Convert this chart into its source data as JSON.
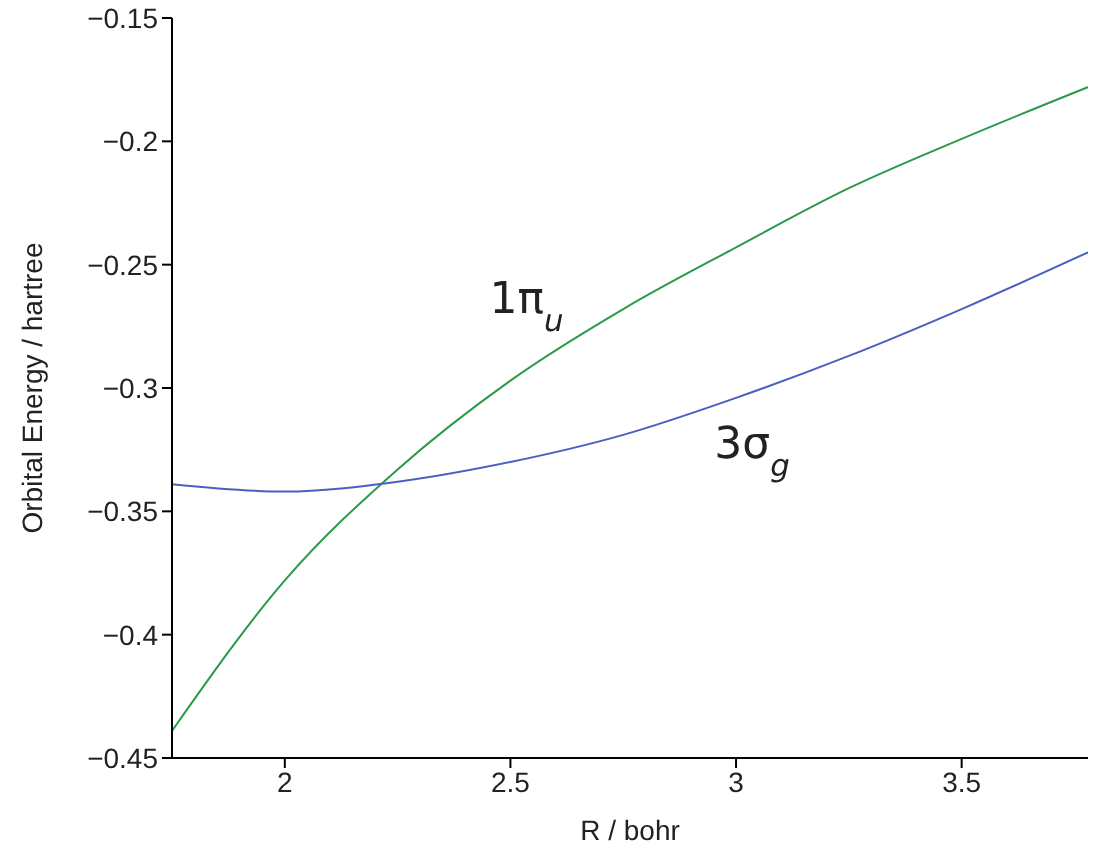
{
  "chart_data": {
    "type": "line",
    "xlabel": "R / bohr",
    "ylabel": "Orbital Energy / hartree",
    "x": [
      1.75,
      2.0,
      2.25,
      2.5,
      2.75,
      3.0,
      3.25,
      3.5,
      3.78
    ],
    "series": [
      {
        "name": "1π$_{u}$",
        "color": "#2a9a4a",
        "values": [
          -0.439,
          -0.378,
          -0.333,
          -0.297,
          -0.268,
          -0.243,
          -0.219,
          -0.199,
          -0.178
        ]
      },
      {
        "name": "3σ$_{g}$",
        "color": "#4a5fc1",
        "values": [
          -0.339,
          -0.342,
          -0.338,
          -0.33,
          -0.319,
          -0.304,
          -0.287,
          -0.268,
          -0.245
        ]
      }
    ],
    "xlim": [
      1.75,
      3.78
    ],
    "xticks": [
      2,
      2.5,
      3,
      3.5
    ],
    "ylim": [
      -0.45,
      -0.15
    ],
    "yticks": [
      {
        "value": -0.45,
        "label": "−0.45"
      },
      {
        "value": -0.4,
        "label": "−0.4"
      },
      {
        "value": -0.35,
        "label": "−0.35"
      },
      {
        "value": -0.3,
        "label": "−0.3"
      },
      {
        "value": -0.25,
        "label": "−0.25"
      },
      {
        "value": -0.2,
        "label": "−0.2"
      },
      {
        "value": -0.15,
        "label": "−0.15"
      }
    ],
    "grid": false,
    "legend": false,
    "marker": "none",
    "line_style": "solid"
  }
}
